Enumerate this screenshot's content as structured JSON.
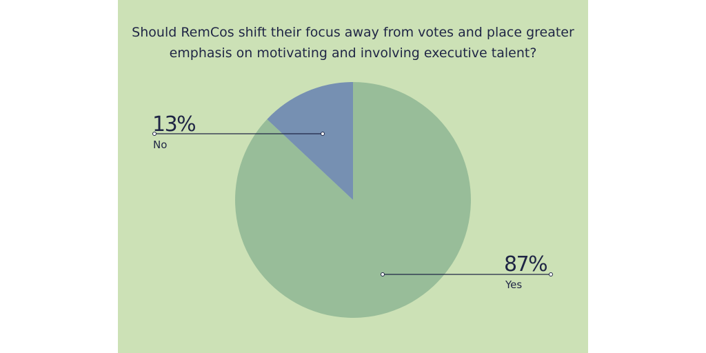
{
  "colors": {
    "background": "#cce1b6",
    "yes": "#98bd99",
    "no": "#7690b2",
    "text": "#1f2545"
  },
  "chart_data": {
    "type": "pie",
    "title": "Should RemCos shift their focus away from votes and place greater emphasis on motivating and involving executive talent?",
    "slices": [
      {
        "label": "Yes",
        "value": 87,
        "value_label": "87%",
        "color": "#98bd99"
      },
      {
        "label": "No",
        "value": 13,
        "value_label": "13%",
        "color": "#7690b2"
      }
    ],
    "legend": "none"
  }
}
